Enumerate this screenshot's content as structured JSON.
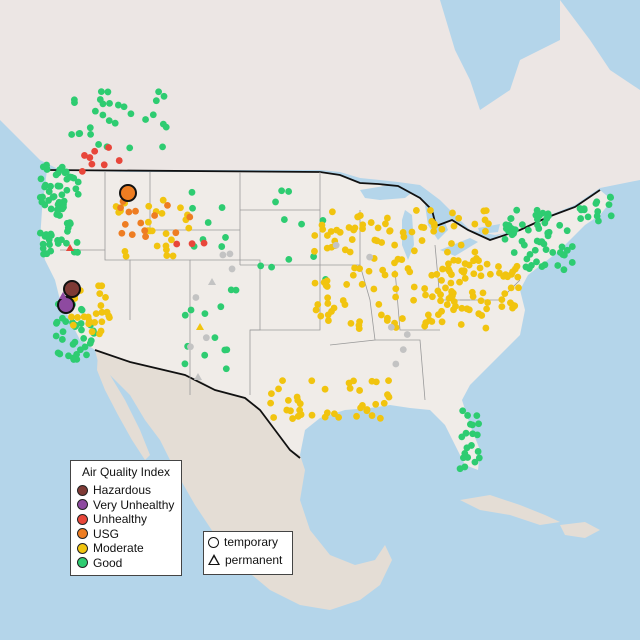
{
  "legend_aqi": {
    "title": "Air Quality Index",
    "items": [
      {
        "label": "Hazardous",
        "color": "#7e3a35"
      },
      {
        "label": "Very Unhealthy",
        "color": "#8e4aa0"
      },
      {
        "label": "Unhealthy",
        "color": "#e8463a"
      },
      {
        "label": "USG",
        "color": "#ee7d22"
      },
      {
        "label": "Moderate",
        "color": "#f1c40f"
      },
      {
        "label": "Good",
        "color": "#2ecc71"
      }
    ]
  },
  "legend_type": {
    "items": [
      {
        "label": "temporary",
        "shape": "circle"
      },
      {
        "label": "permanent",
        "shape": "triangle"
      }
    ]
  },
  "colors": {
    "water": "#b4d5ea",
    "land": "#ece6e4",
    "us_land": "#f0ece8",
    "mexico": "#e4ddd5",
    "border": "#111111",
    "state_lines": "#9a9a9a",
    "nodata": "#c3c3c3"
  }
}
